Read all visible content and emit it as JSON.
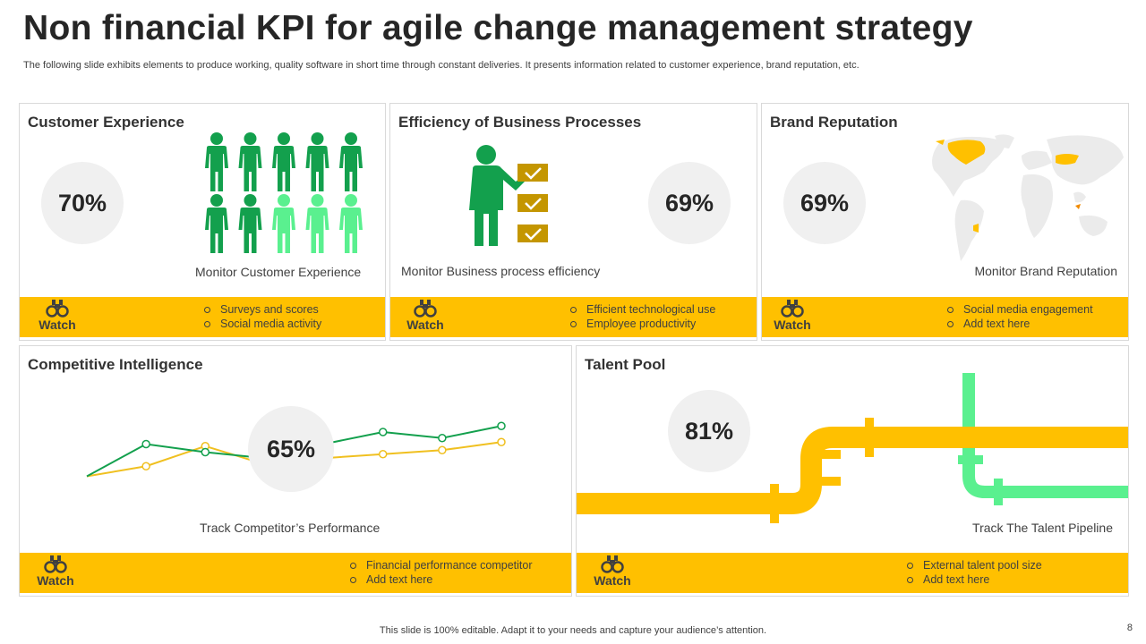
{
  "title": "Non financial KPI for agile change management strategy",
  "subtitle": "The following slide exhibits elements to produce working, quality software in short time through constant deliveries. It presents information related to customer experience, brand reputation, etc.",
  "watch_label": "Watch",
  "colors": {
    "accent": "#ffc000",
    "green": "#13a04d",
    "light_green": "#5af08f",
    "pipe_yellow": "#ffc000",
    "check_gold": "#c49600"
  },
  "icons": [
    "binoculars-icon",
    "person-icon",
    "checklist-icon",
    "world-map-icon",
    "pipeline-icon"
  ],
  "cards": {
    "customer_experience": {
      "title": "Customer Experience",
      "kpi": "70%",
      "kpi_value": 70,
      "people_total": 10,
      "people_highlighted": 7,
      "caption": "Monitor  Customer Experience",
      "bullets": [
        "Surveys and scores",
        "Social media activity"
      ]
    },
    "business_processes": {
      "title": "Efficiency of Business Processes",
      "kpi": "69%",
      "caption": "Monitor  Business process efficiency",
      "bullets": [
        "Efficient technological use",
        "Employee productivity"
      ]
    },
    "brand_reputation": {
      "title": "Brand Reputation",
      "kpi": "69%",
      "caption": "Monitor  Brand Reputation",
      "bullets": [
        "Social media engagement",
        "Add text here"
      ]
    },
    "competitive_intelligence": {
      "title": "Competitive Intelligence",
      "kpi": "65%",
      "caption": "Track Competitor’s Performance",
      "bullets": [
        "Financial performance  competitor",
        "Add text here"
      ]
    },
    "talent_pool": {
      "title": "Talent Pool",
      "kpi": "81%",
      "caption": "Track The Talent Pipeline",
      "bullets": [
        "External talent pool size",
        "Add text here"
      ]
    }
  },
  "chart_data": {
    "type": "line",
    "title": "",
    "x": [
      1,
      2,
      3,
      4,
      5,
      6,
      7,
      8
    ],
    "series": [
      {
        "name": "green",
        "color": "#13a04d",
        "values": [
          1.0,
          2.6,
          2.2,
          1.9,
          2.6,
          3.2,
          2.9,
          3.5
        ]
      },
      {
        "name": "yellow",
        "color": "#f0c020",
        "values": [
          1.0,
          1.5,
          2.5,
          1.6,
          1.9,
          2.1,
          2.3,
          2.7
        ]
      }
    ],
    "ylim": [
      0,
      4
    ],
    "grid": false
  },
  "footer": "This slide is 100% editable. Adapt it to your needs and capture your audience’s attention.",
  "page_number": "8"
}
